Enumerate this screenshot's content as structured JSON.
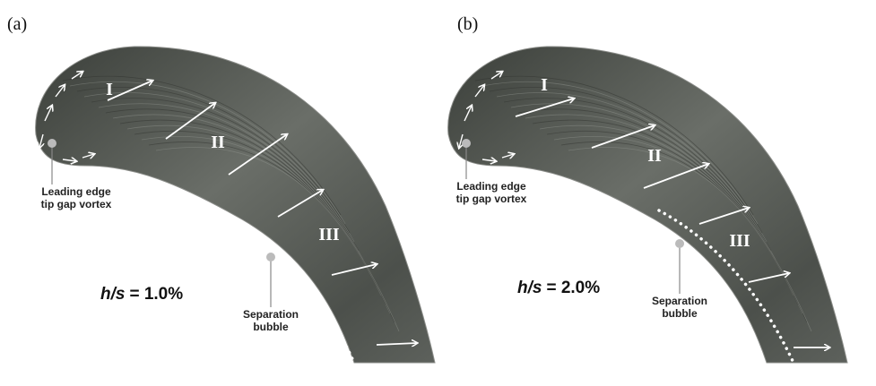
{
  "panels": [
    {
      "tag": "(a)",
      "regions": [
        "I",
        "II",
        "III"
      ],
      "vortex_label": [
        "Leading edge",
        "tip gap vortex"
      ],
      "bubble_label": [
        "Separation",
        "bubble"
      ],
      "ratio": {
        "var": "h/s",
        "value": "= 1.0%"
      }
    },
    {
      "tag": "(b)",
      "regions": [
        "I",
        "II",
        "III"
      ],
      "vortex_label": [
        "Leading edge",
        "tip gap vortex"
      ],
      "bubble_label": [
        "Separation",
        "bubble"
      ],
      "ratio": {
        "var": "h/s",
        "value": "= 2.0%"
      }
    }
  ]
}
